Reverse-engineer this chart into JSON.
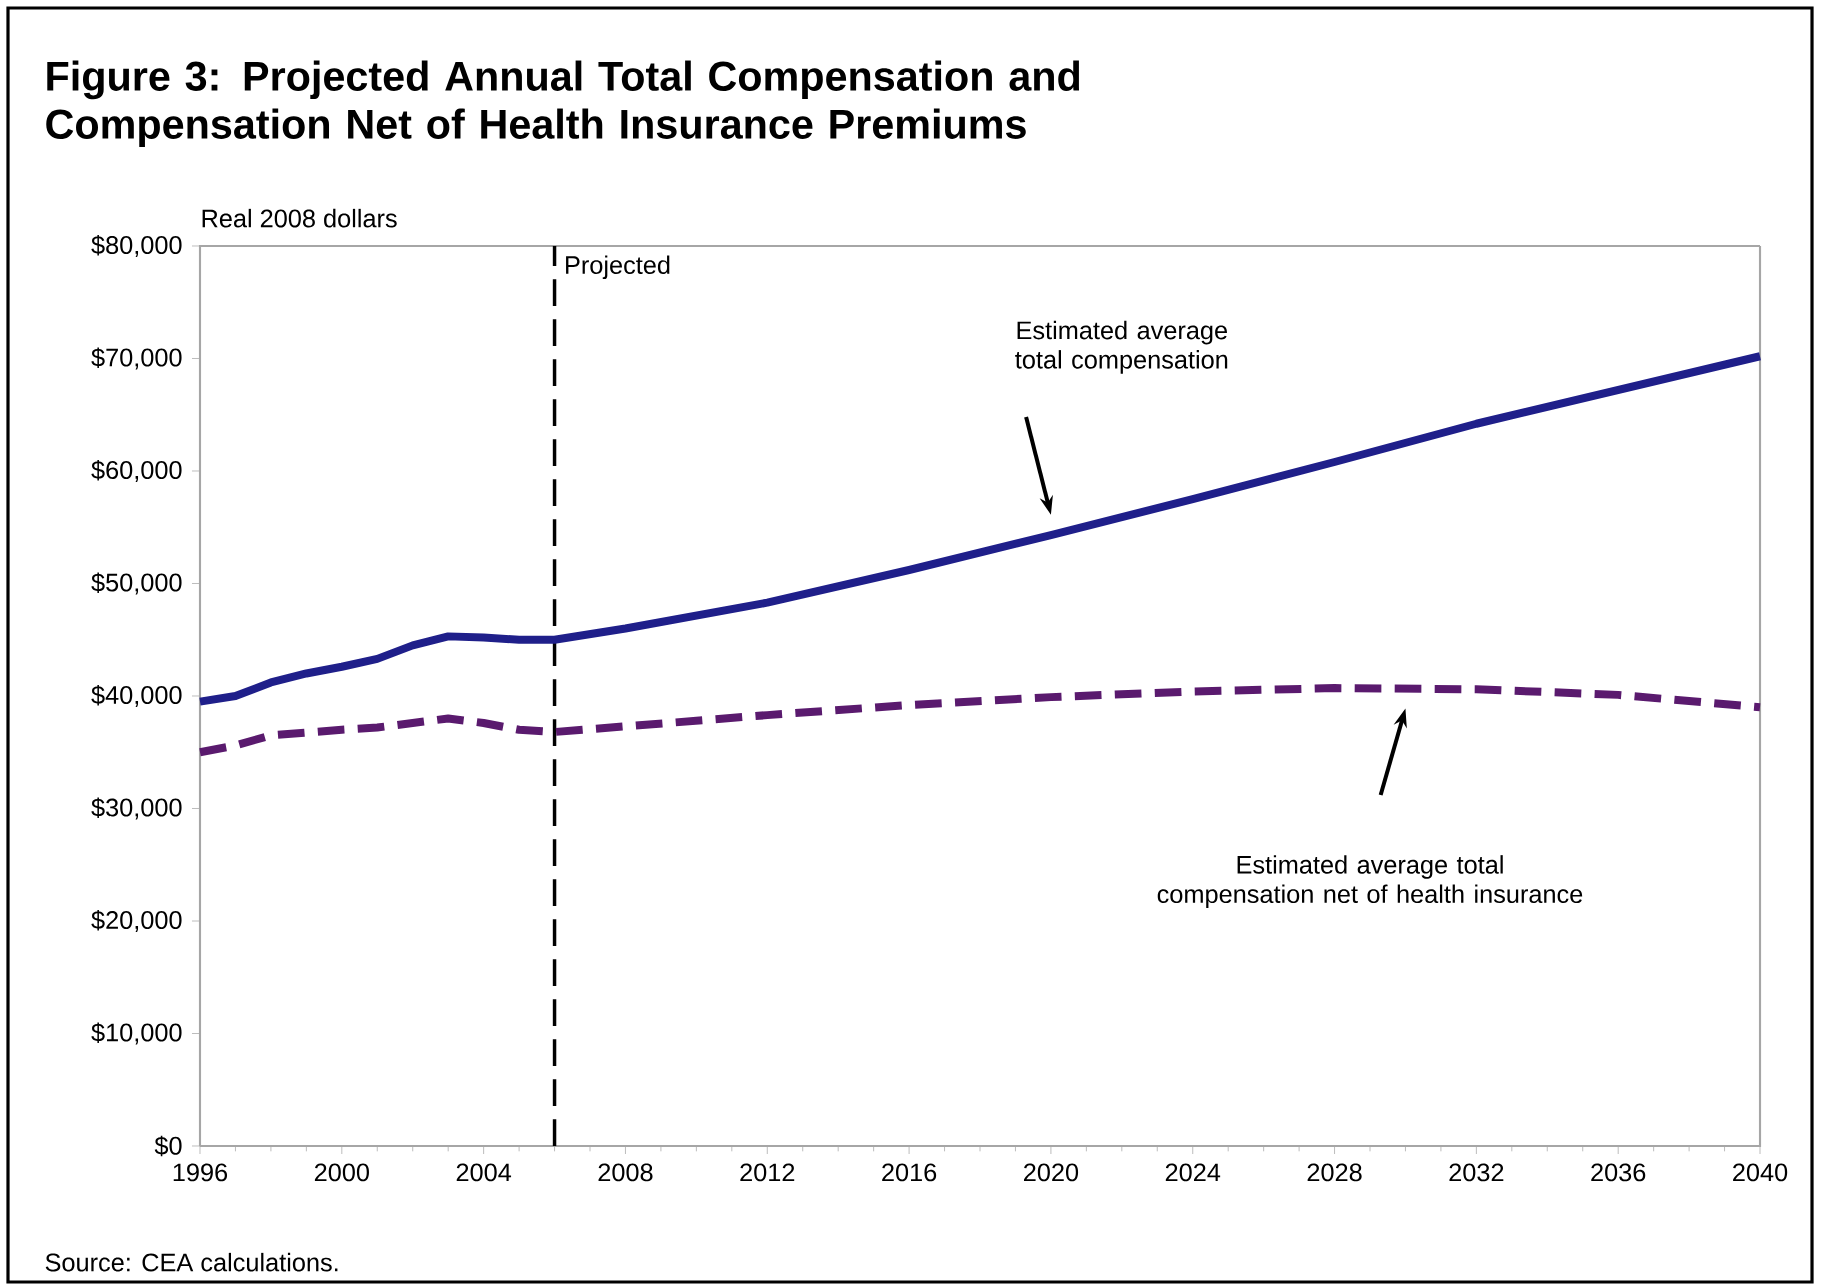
{
  "chart_data": {
    "type": "line",
    "title": "Figure 3: Projected Annual Total Compensation and Compensation Net of Health Insurance Premiums",
    "ylabel": "Real 2008 dollars",
    "xlim": [
      1996,
      2040
    ],
    "ylim": [
      0,
      80000
    ],
    "xticks": [
      1996,
      2000,
      2004,
      2008,
      2012,
      2016,
      2020,
      2024,
      2028,
      2032,
      2036,
      2040
    ],
    "yticks": [
      {
        "value": 0,
        "label": "$0"
      },
      {
        "value": 10000,
        "label": "$10,000"
      },
      {
        "value": 20000,
        "label": "$20,000"
      },
      {
        "value": 30000,
        "label": "$30,000"
      },
      {
        "value": 40000,
        "label": "$40,000"
      },
      {
        "value": 50000,
        "label": "$50,000"
      },
      {
        "value": 60000,
        "label": "$60,000"
      },
      {
        "value": 70000,
        "label": "$70,000"
      },
      {
        "value": 80000,
        "label": "$80,000"
      }
    ],
    "grid": false,
    "marker": "none",
    "series": [
      {
        "color": "#1f1f8a",
        "line_style": "solid",
        "x": [
          1996,
          1997,
          1998,
          1999,
          2000,
          2001,
          2002,
          2003,
          2004,
          2005,
          2006,
          2008,
          2012,
          2016,
          2020,
          2024,
          2028,
          2032,
          2036,
          2040
        ],
        "values": [
          39500,
          40000,
          41200,
          42000,
          42600,
          43300,
          44500,
          45300,
          45200,
          45000,
          45000,
          46000,
          48300,
          51200,
          54300,
          57500,
          60800,
          64200,
          67200,
          70200
        ]
      },
      {
        "color": "#5a1a6e",
        "line_style": "dashed",
        "x": [
          1996,
          1997,
          1998,
          2000,
          2001,
          2003,
          2004,
          2005,
          2006,
          2008,
          2012,
          2016,
          2020,
          2024,
          2028,
          2032,
          2036,
          2040
        ],
        "values": [
          35000,
          35600,
          36500,
          37000,
          37200,
          38000,
          37600,
          37000,
          36800,
          37300,
          38300,
          39200,
          39900,
          40400,
          40700,
          40600,
          40100,
          39000
        ]
      }
    ],
    "ref_lines": [
      {
        "axis": "x",
        "value": 2006,
        "label": "Projected",
        "color": "#000000",
        "line_style": "dashed"
      }
    ],
    "annotations": [
      "Estimated average total compensation",
      "Estimated average total compensation net of health insurance",
      "Source: CEA calculations."
    ]
  }
}
